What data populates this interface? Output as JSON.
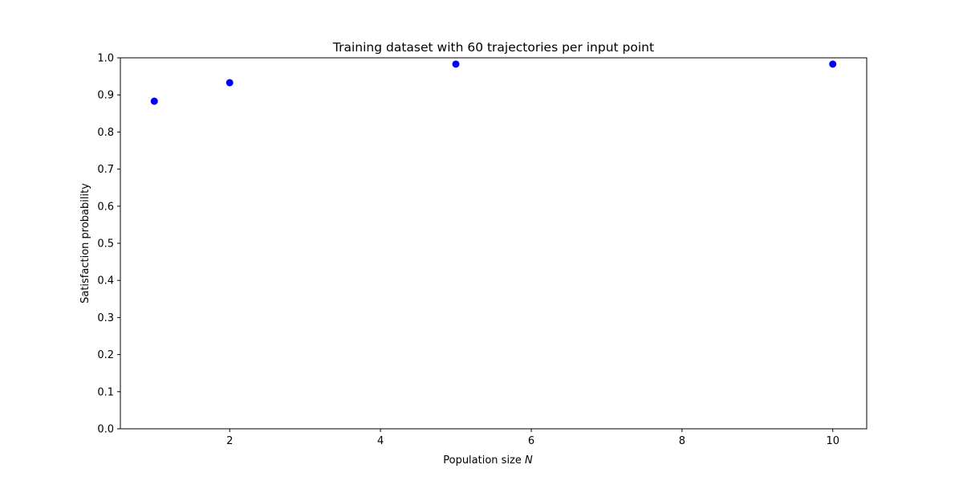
{
  "chart_data": {
    "type": "scatter",
    "title": "Training dataset with 60 trajectories per input point",
    "xlabel": "Population size",
    "xlabel_var": "N",
    "ylabel": "Satisfaction probability",
    "xlim": [
      0.55,
      10.45
    ],
    "ylim": [
      0.0,
      1.0
    ],
    "xticks": [
      2,
      4,
      6,
      8,
      10
    ],
    "yticks": [
      0.0,
      0.1,
      0.2,
      0.3,
      0.4,
      0.5,
      0.6,
      0.7,
      0.8,
      0.9,
      1.0
    ],
    "grid": false,
    "points": [
      {
        "x": 1,
        "y": 0.883
      },
      {
        "x": 2,
        "y": 0.933
      },
      {
        "x": 5,
        "y": 0.983
      },
      {
        "x": 10,
        "y": 0.983
      }
    ],
    "marker_color": "#0000ff"
  }
}
